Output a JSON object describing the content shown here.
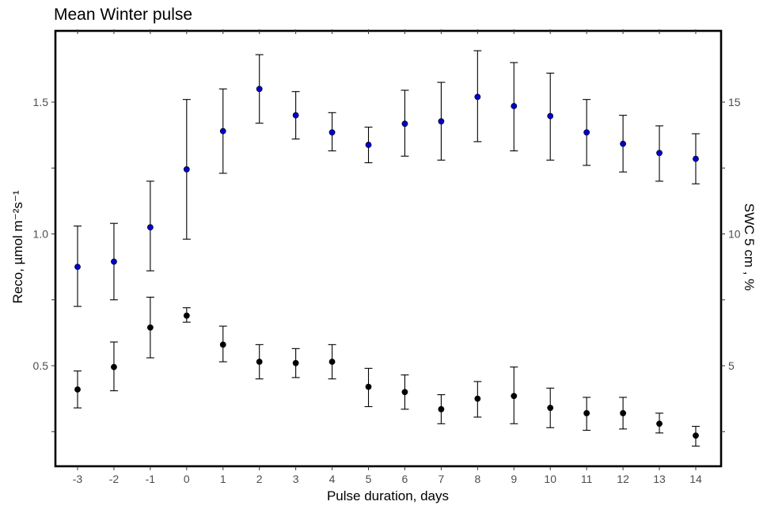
{
  "chart_data": {
    "type": "scatter",
    "title": "Mean Winter pulse",
    "xlabel": "Pulse duration, days",
    "ylabel_left": "Reco, µmol m⁻²s⁻¹",
    "ylabel_right": "SWC 5 cm , %",
    "x_ticks": [
      "-3",
      "-2",
      "-1",
      "0",
      "1",
      "2",
      "3",
      "4",
      "5",
      "6",
      "7",
      "8",
      "9",
      "10",
      "11",
      "12",
      "13",
      "14"
    ],
    "left_y_ticks": [
      "0.5",
      "1.0",
      "1.5"
    ],
    "right_y_ticks": [
      "5",
      "10",
      "15"
    ],
    "ylim_left": [
      0.2,
      1.77
    ],
    "ylim_right": [
      2.0,
      17.7
    ],
    "grid": false,
    "series": [
      {
        "axis": "right",
        "color": "#0000cc",
        "x": [
          -3,
          -2,
          -1,
          0,
          1,
          2,
          3,
          4,
          5,
          6,
          7,
          8,
          9,
          10,
          11,
          12,
          13,
          14
        ],
        "y": [
          8.75,
          8.95,
          10.25,
          12.45,
          13.9,
          15.5,
          14.5,
          13.85,
          13.38,
          14.18,
          14.27,
          15.2,
          14.85,
          14.47,
          13.85,
          13.42,
          13.07,
          12.85
        ],
        "lower": [
          7.25,
          7.5,
          8.6,
          9.8,
          12.3,
          14.2,
          13.6,
          13.15,
          12.7,
          12.95,
          12.8,
          13.5,
          13.15,
          12.8,
          12.6,
          12.35,
          12.0,
          11.9
        ],
        "upper": [
          10.3,
          10.4,
          12.0,
          15.1,
          15.5,
          16.8,
          15.4,
          14.6,
          14.05,
          15.45,
          15.75,
          16.95,
          16.5,
          16.1,
          15.1,
          14.5,
          14.1,
          13.8
        ]
      },
      {
        "axis": "left",
        "color": "#000000",
        "x": [
          -3,
          -2,
          -1,
          0,
          1,
          2,
          3,
          4,
          5,
          6,
          7,
          8,
          9,
          10,
          11,
          12,
          13,
          14
        ],
        "y": [
          0.41,
          0.495,
          0.645,
          0.69,
          0.58,
          0.515,
          0.51,
          0.515,
          0.42,
          0.4,
          0.335,
          0.375,
          0.385,
          0.34,
          0.32,
          0.32,
          0.28,
          0.235
        ],
        "lower": [
          0.34,
          0.405,
          0.53,
          0.665,
          0.515,
          0.45,
          0.455,
          0.45,
          0.345,
          0.335,
          0.28,
          0.305,
          0.28,
          0.265,
          0.255,
          0.26,
          0.245,
          0.195
        ],
        "upper": [
          0.48,
          0.59,
          0.76,
          0.72,
          0.65,
          0.58,
          0.565,
          0.58,
          0.49,
          0.465,
          0.39,
          0.44,
          0.495,
          0.415,
          0.38,
          0.38,
          0.32,
          0.27
        ]
      }
    ]
  }
}
